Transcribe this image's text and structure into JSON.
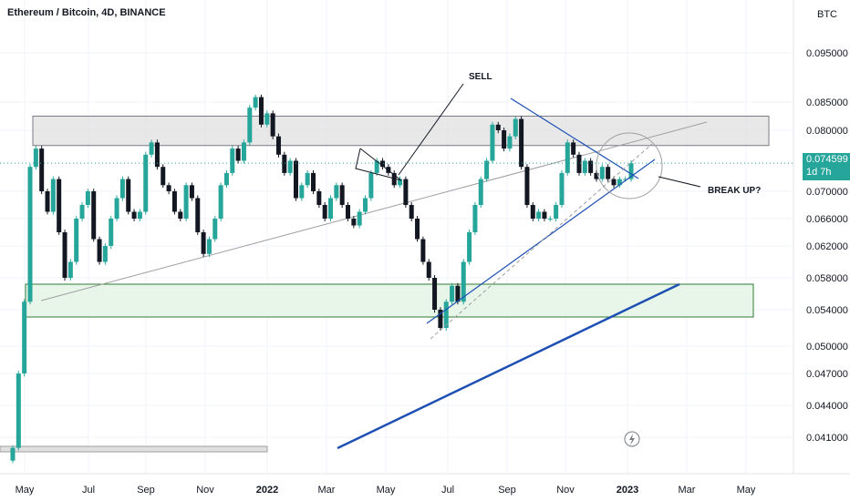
{
  "header": {
    "symbol_title": "Ethereum / Bitcoin, 4D, BINANCE",
    "currency": "BTC"
  },
  "last_price": {
    "value": "0.074599",
    "countdown": "1d 7h",
    "color": "#26a69a"
  },
  "annotations": {
    "sell": "SELL",
    "break_up": "BREAK UP?"
  },
  "colors": {
    "up_candle": "#26a69a",
    "down_candle": "#131722",
    "trendline_blue": "#1e50b4",
    "resistance_zone": "#e0e0e0",
    "support_zone": "#e8f5e9",
    "support_border": "#2e7d32"
  },
  "chart_data": {
    "type": "candlestick",
    "title": "Ethereum / Bitcoin, 4D, BINANCE",
    "y_axis": {
      "unit": "BTC",
      "ticks": [
        0.095,
        0.085,
        0.08,
        0.07,
        0.066,
        0.062,
        0.058,
        0.054,
        0.05,
        0.047,
        0.044,
        0.041
      ],
      "tick_labels": [
        "0.095000",
        "0.085000",
        "0.080000",
        "0.070000",
        "0.066000",
        "0.062000",
        "0.058000",
        "0.054000",
        "0.050000",
        "0.047000",
        "0.044000",
        "0.041000"
      ]
    },
    "x_axis": {
      "tick_labels": [
        "May",
        "Jul",
        "Sep",
        "Nov",
        "2022",
        "Mar",
        "May",
        "Jul",
        "Sep",
        "Nov",
        "2023",
        "Mar",
        "May"
      ],
      "bold_labels": [
        "2022",
        "2023"
      ]
    },
    "close_series": [
      0.04,
      0.047,
      0.055,
      0.074,
      0.077,
      0.07,
      0.067,
      0.072,
      0.064,
      0.058,
      0.06,
      0.066,
      0.068,
      0.07,
      0.063,
      0.06,
      0.062,
      0.066,
      0.069,
      0.072,
      0.067,
      0.066,
      0.067,
      0.076,
      0.078,
      0.074,
      0.071,
      0.07,
      0.067,
      0.066,
      0.071,
      0.069,
      0.064,
      0.061,
      0.063,
      0.066,
      0.071,
      0.073,
      0.077,
      0.075,
      0.078,
      0.084,
      0.086,
      0.081,
      0.083,
      0.079,
      0.076,
      0.073,
      0.075,
      0.069,
      0.071,
      0.073,
      0.07,
      0.068,
      0.066,
      0.069,
      0.071,
      0.068,
      0.066,
      0.065,
      0.067,
      0.069,
      0.073,
      0.075,
      0.074,
      0.073,
      0.071,
      0.072,
      0.068,
      0.066,
      0.063,
      0.06,
      0.058,
      0.054,
      0.052,
      0.055,
      0.057,
      0.055,
      0.06,
      0.064,
      0.068,
      0.072,
      0.075,
      0.081,
      0.08,
      0.077,
      0.079,
      0.082,
      0.074,
      0.068,
      0.066,
      0.067,
      0.066,
      0.066,
      0.068,
      0.073,
      0.078,
      0.076,
      0.073,
      0.075,
      0.073,
      0.072,
      0.074,
      0.072,
      0.071,
      0.072,
      0.072,
      0.0746
    ],
    "resistance_zone": {
      "from": 0.0775,
      "to": 0.0825
    },
    "support_zone": {
      "from": 0.0532,
      "to": 0.0572
    },
    "last_value": 0.074599,
    "grid": true
  }
}
